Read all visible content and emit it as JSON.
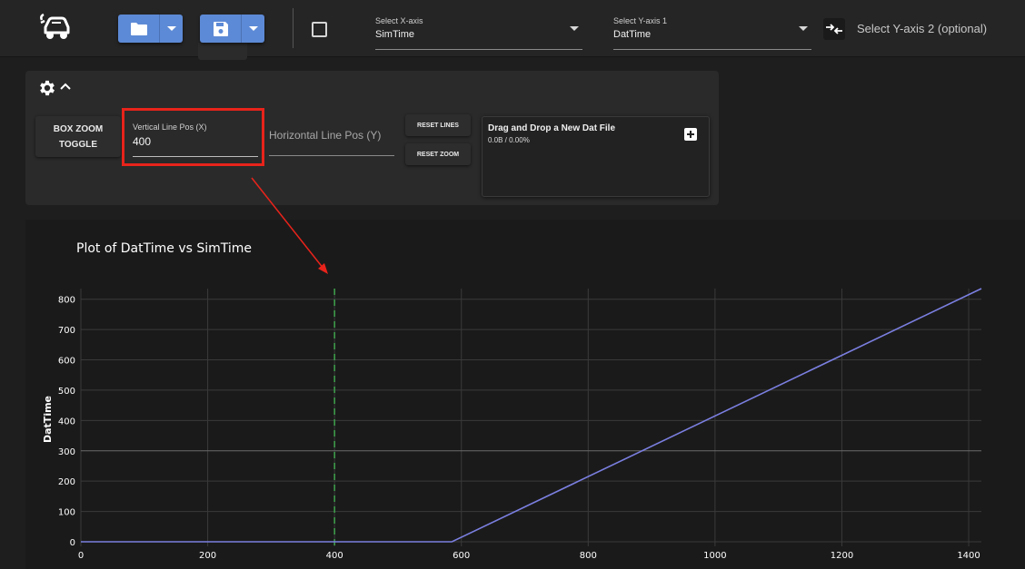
{
  "toolbar": {
    "open_button_icon": "folder-icon",
    "save_button_icon": "save-icon",
    "x_axis": {
      "label": "Select X-axis",
      "value": "SimTime"
    },
    "y_axis1": {
      "label": "Select Y-axis 1",
      "value": "DatTime"
    },
    "y_axis2": {
      "placeholder": "Select Y-axis 2 (optional)"
    }
  },
  "controls": {
    "box_zoom": {
      "line1": "BOX ZOOM",
      "line2": "TOGGLE"
    },
    "vertical_line": {
      "label": "Vertical Line Pos (X)",
      "value": "400"
    },
    "horizontal_line": {
      "placeholder": "Horizontal Line Pos (Y)"
    },
    "reset_lines": "RESET LINES",
    "reset_zoom": "RESET ZOOM",
    "dropzone": {
      "title": "Drag and Drop a New Dat File",
      "status": "0.0B / 0.00%"
    }
  },
  "chart_data": {
    "type": "line",
    "title": "Plot of DatTime vs SimTime",
    "xlabel": "",
    "ylabel": "DatTime",
    "xlim": [
      0,
      1420
    ],
    "ylim": [
      -15,
      835
    ],
    "x_ticks": [
      0,
      200,
      400,
      600,
      800,
      1000,
      1200,
      1400
    ],
    "y_ticks": [
      0,
      100,
      200,
      300,
      400,
      500,
      600,
      700,
      800
    ],
    "grid": true,
    "series": [
      {
        "name": "",
        "color": "#7b7fe0",
        "x": [
          0,
          585,
          1420
        ],
        "y": [
          0,
          0,
          835
        ]
      }
    ],
    "vertical_line": {
      "x": 400,
      "color": "#3fa34d",
      "style": "dashed"
    },
    "highlighted_gridline_y": 300
  },
  "colors": {
    "accent": "#5d8ad6",
    "highlight": "#e8231b",
    "annotation_arrow": "#e8231b"
  }
}
